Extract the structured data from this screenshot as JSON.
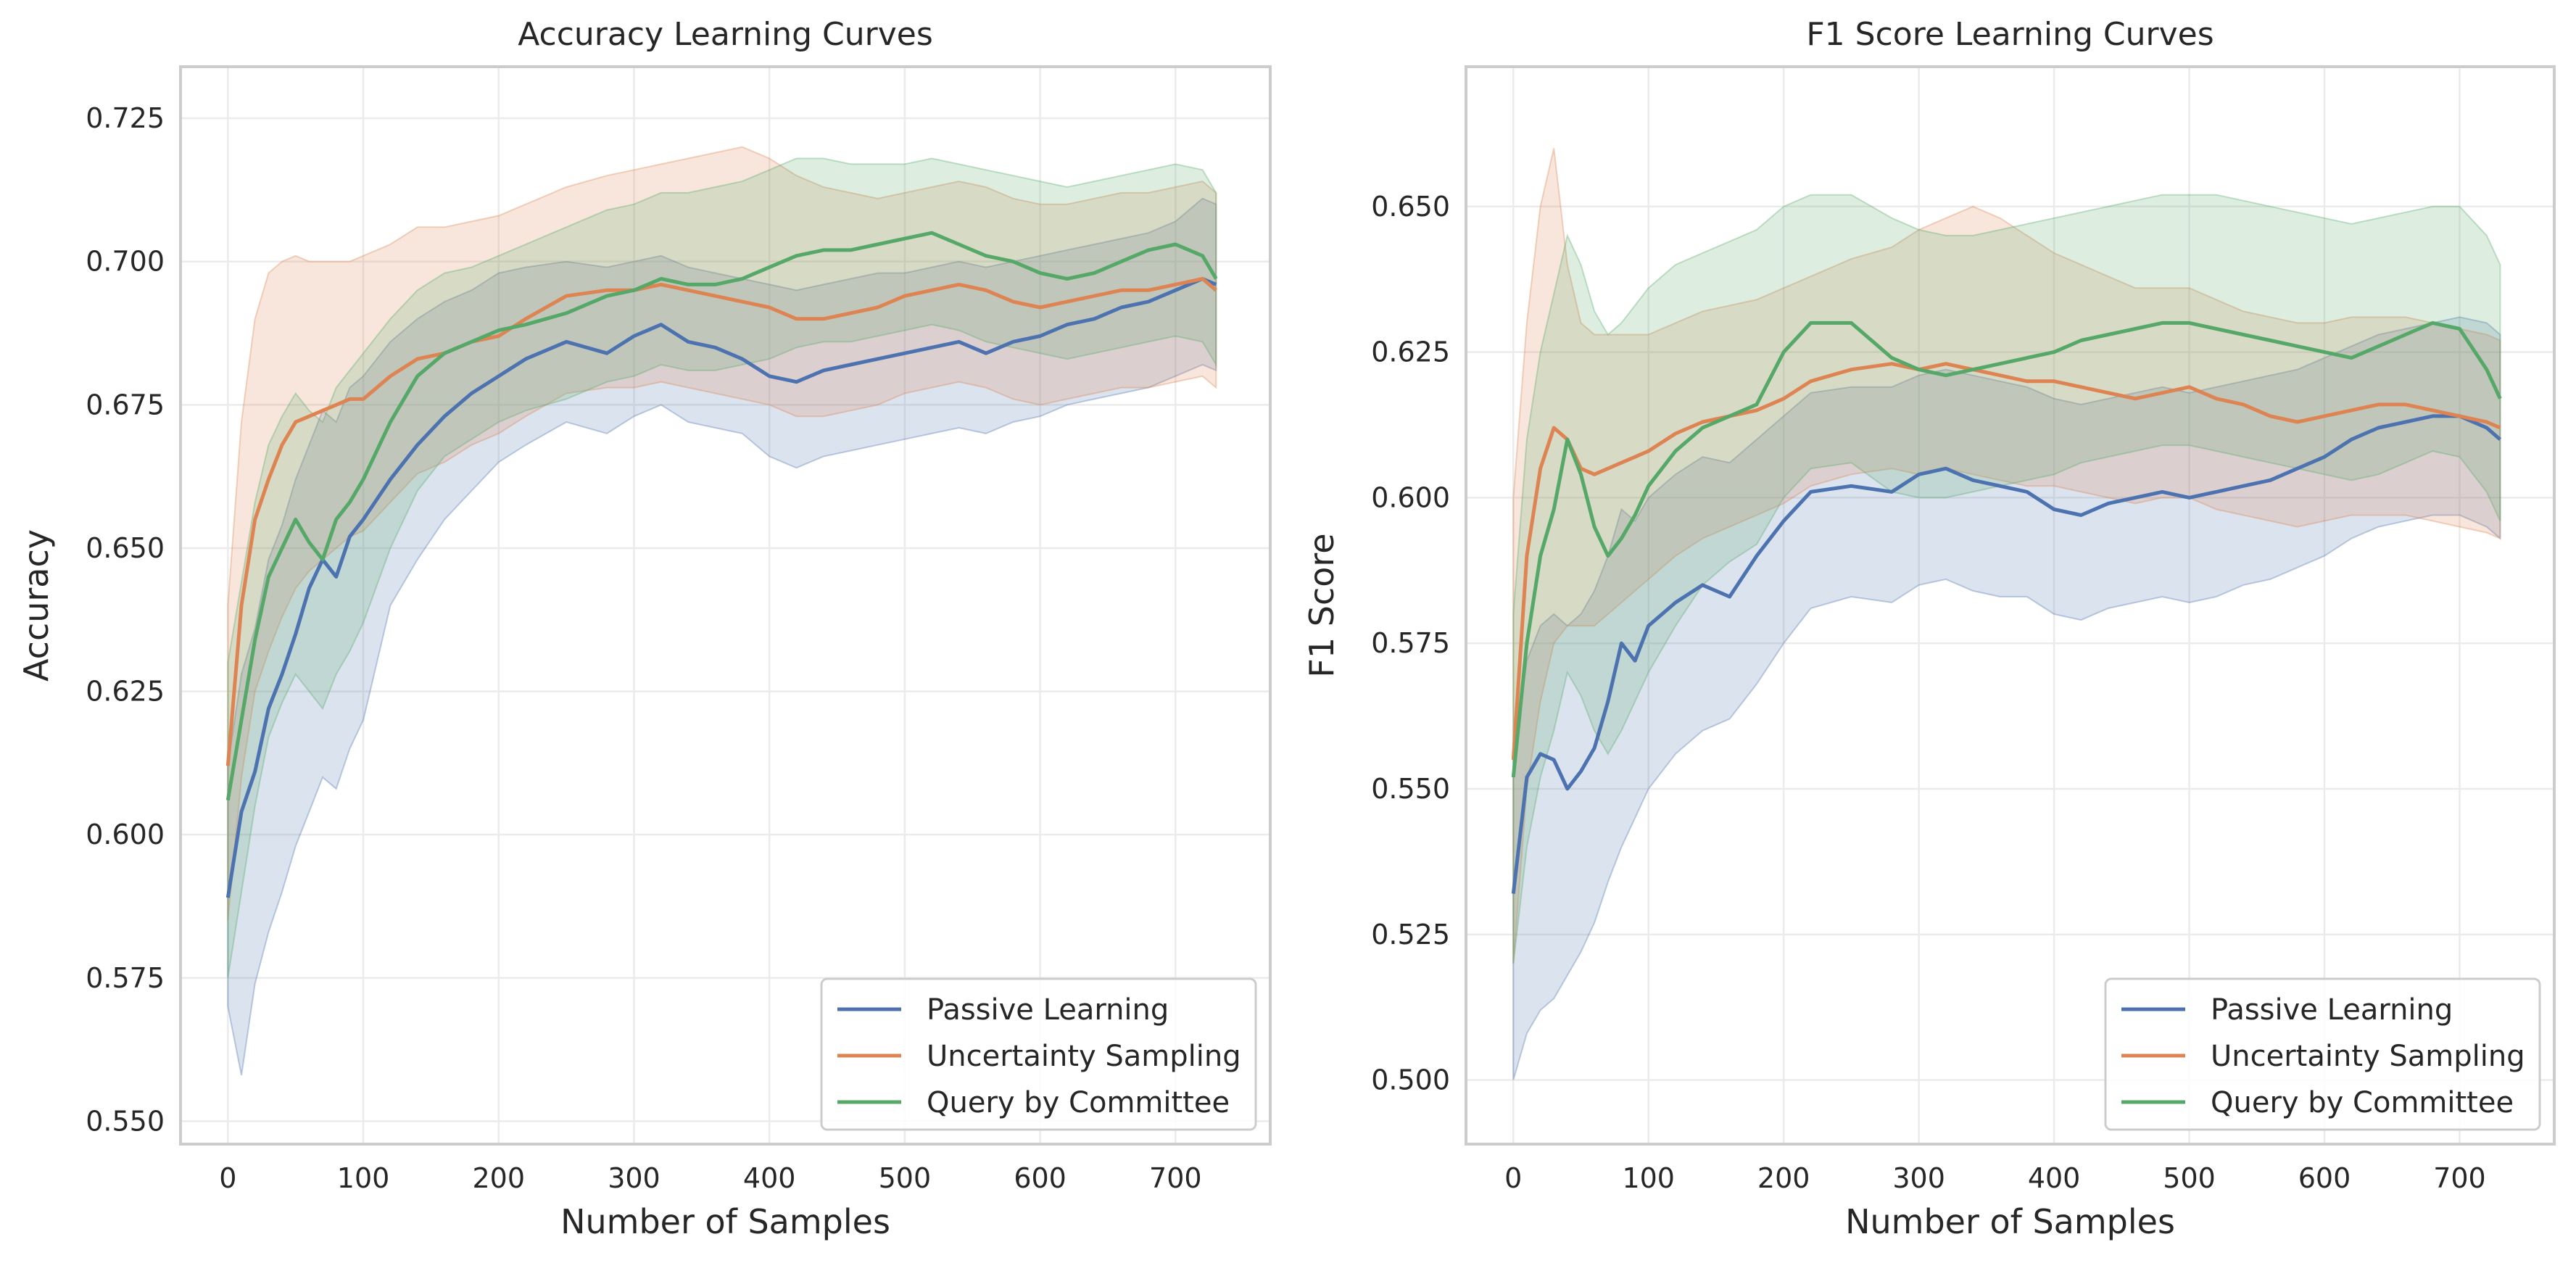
{
  "chart_data": [
    {
      "type": "line",
      "title": "Accuracy Learning Curves",
      "xlabel": "Number of Samples",
      "ylabel": "Accuracy",
      "xlim": [
        -35,
        770
      ],
      "ylim": [
        0.546,
        0.734
      ],
      "xticks": [
        0,
        100,
        200,
        300,
        400,
        500,
        600,
        700
      ],
      "xtick_labels": [
        "0",
        "100",
        "200",
        "300",
        "400",
        "500",
        "600",
        "700"
      ],
      "yticks": [
        0.55,
        0.575,
        0.6,
        0.625,
        0.65,
        0.675,
        0.7,
        0.725
      ],
      "ytick_labels": [
        "0.550",
        "0.575",
        "0.600",
        "0.625",
        "0.650",
        "0.675",
        "0.700",
        "0.725"
      ],
      "grid": true,
      "legend": "lower-right",
      "x": [
        0,
        10,
        20,
        30,
        40,
        50,
        60,
        70,
        80,
        90,
        100,
        120,
        140,
        160,
        180,
        200,
        220,
        250,
        280,
        300,
        320,
        340,
        360,
        380,
        400,
        420,
        440,
        460,
        480,
        500,
        520,
        540,
        560,
        580,
        600,
        620,
        640,
        660,
        680,
        700,
        720,
        730
      ],
      "series": [
        {
          "name": "Passive Learning",
          "color": "#4c72b0",
          "values": [
            0.589,
            0.604,
            0.611,
            0.622,
            0.628,
            0.635,
            0.643,
            0.648,
            0.645,
            0.652,
            0.655,
            0.662,
            0.668,
            0.673,
            0.677,
            0.68,
            0.683,
            0.686,
            0.684,
            0.687,
            0.689,
            0.686,
            0.685,
            0.683,
            0.68,
            0.679,
            0.681,
            0.682,
            0.683,
            0.684,
            0.685,
            0.686,
            0.684,
            0.686,
            0.687,
            0.689,
            0.69,
            0.692,
            0.693,
            0.695,
            0.697,
            0.696
          ],
          "upper": [
            0.612,
            0.628,
            0.636,
            0.648,
            0.654,
            0.662,
            0.668,
            0.674,
            0.672,
            0.678,
            0.68,
            0.686,
            0.69,
            0.693,
            0.695,
            0.698,
            0.699,
            0.7,
            0.699,
            0.7,
            0.701,
            0.699,
            0.698,
            0.697,
            0.696,
            0.695,
            0.696,
            0.697,
            0.698,
            0.698,
            0.699,
            0.7,
            0.699,
            0.7,
            0.701,
            0.702,
            0.703,
            0.704,
            0.705,
            0.707,
            0.711,
            0.71
          ],
          "lower": [
            0.57,
            0.558,
            0.574,
            0.583,
            0.59,
            0.598,
            0.604,
            0.61,
            0.608,
            0.615,
            0.62,
            0.64,
            0.648,
            0.655,
            0.66,
            0.665,
            0.668,
            0.672,
            0.67,
            0.673,
            0.675,
            0.672,
            0.671,
            0.67,
            0.666,
            0.664,
            0.666,
            0.667,
            0.668,
            0.669,
            0.67,
            0.671,
            0.67,
            0.672,
            0.673,
            0.675,
            0.676,
            0.677,
            0.678,
            0.68,
            0.682,
            0.681
          ]
        },
        {
          "name": "Uncertainty Sampling",
          "color": "#dd8452",
          "values": [
            0.612,
            0.64,
            0.655,
            0.662,
            0.668,
            0.672,
            0.673,
            0.674,
            0.675,
            0.676,
            0.676,
            0.68,
            0.683,
            0.684,
            0.686,
            0.687,
            0.69,
            0.694,
            0.695,
            0.695,
            0.696,
            0.695,
            0.694,
            0.693,
            0.692,
            0.69,
            0.69,
            0.691,
            0.692,
            0.694,
            0.695,
            0.696,
            0.695,
            0.693,
            0.692,
            0.693,
            0.694,
            0.695,
            0.695,
            0.696,
            0.697,
            0.695
          ],
          "upper": [
            0.64,
            0.672,
            0.69,
            0.698,
            0.7,
            0.701,
            0.7,
            0.7,
            0.7,
            0.7,
            0.701,
            0.703,
            0.706,
            0.706,
            0.707,
            0.708,
            0.71,
            0.713,
            0.715,
            0.716,
            0.717,
            0.718,
            0.719,
            0.72,
            0.718,
            0.715,
            0.713,
            0.712,
            0.711,
            0.712,
            0.713,
            0.714,
            0.713,
            0.711,
            0.71,
            0.71,
            0.711,
            0.712,
            0.712,
            0.713,
            0.714,
            0.712
          ],
          "lower": [
            0.585,
            0.61,
            0.625,
            0.632,
            0.638,
            0.643,
            0.646,
            0.648,
            0.65,
            0.652,
            0.653,
            0.658,
            0.663,
            0.665,
            0.668,
            0.67,
            0.673,
            0.677,
            0.678,
            0.678,
            0.679,
            0.678,
            0.677,
            0.676,
            0.675,
            0.673,
            0.673,
            0.674,
            0.675,
            0.677,
            0.678,
            0.679,
            0.678,
            0.676,
            0.675,
            0.676,
            0.677,
            0.678,
            0.678,
            0.679,
            0.68,
            0.678
          ]
        },
        {
          "name": "Query by Committee",
          "color": "#55a868",
          "values": [
            0.606,
            0.62,
            0.634,
            0.645,
            0.65,
            0.655,
            0.651,
            0.648,
            0.655,
            0.658,
            0.662,
            0.672,
            0.68,
            0.684,
            0.686,
            0.688,
            0.689,
            0.691,
            0.694,
            0.695,
            0.697,
            0.696,
            0.696,
            0.697,
            0.699,
            0.701,
            0.702,
            0.702,
            0.703,
            0.704,
            0.705,
            0.703,
            0.701,
            0.7,
            0.698,
            0.697,
            0.698,
            0.7,
            0.702,
            0.703,
            0.701,
            0.697
          ],
          "upper": [
            0.63,
            0.644,
            0.658,
            0.668,
            0.673,
            0.677,
            0.674,
            0.672,
            0.678,
            0.681,
            0.684,
            0.69,
            0.695,
            0.698,
            0.699,
            0.701,
            0.703,
            0.706,
            0.709,
            0.71,
            0.712,
            0.712,
            0.713,
            0.714,
            0.716,
            0.718,
            0.718,
            0.717,
            0.717,
            0.717,
            0.718,
            0.717,
            0.716,
            0.715,
            0.714,
            0.713,
            0.714,
            0.715,
            0.716,
            0.717,
            0.716,
            0.712
          ],
          "lower": [
            0.575,
            0.59,
            0.605,
            0.617,
            0.623,
            0.628,
            0.625,
            0.622,
            0.628,
            0.632,
            0.637,
            0.65,
            0.66,
            0.666,
            0.669,
            0.672,
            0.674,
            0.676,
            0.679,
            0.68,
            0.682,
            0.681,
            0.681,
            0.682,
            0.683,
            0.685,
            0.686,
            0.686,
            0.687,
            0.688,
            0.689,
            0.688,
            0.686,
            0.685,
            0.684,
            0.683,
            0.684,
            0.685,
            0.686,
            0.687,
            0.686,
            0.682
          ]
        }
      ]
    },
    {
      "type": "line",
      "title": "F1 Score Learning Curves",
      "xlabel": "Number of Samples",
      "ylabel": "F1 Score",
      "xlim": [
        -35,
        770
      ],
      "ylim": [
        0.489,
        0.674
      ],
      "xticks": [
        0,
        100,
        200,
        300,
        400,
        500,
        600,
        700
      ],
      "xtick_labels": [
        "0",
        "100",
        "200",
        "300",
        "400",
        "500",
        "600",
        "700"
      ],
      "yticks": [
        0.5,
        0.525,
        0.55,
        0.575,
        0.6,
        0.625,
        0.65
      ],
      "ytick_labels": [
        "0.500",
        "0.525",
        "0.550",
        "0.575",
        "0.600",
        "0.625",
        "0.650"
      ],
      "grid": true,
      "legend": "lower-right",
      "x": [
        0,
        10,
        20,
        30,
        40,
        50,
        60,
        70,
        80,
        90,
        100,
        120,
        140,
        160,
        180,
        200,
        220,
        250,
        280,
        300,
        320,
        340,
        360,
        380,
        400,
        420,
        440,
        460,
        480,
        500,
        520,
        540,
        560,
        580,
        600,
        620,
        640,
        660,
        680,
        700,
        720,
        730
      ],
      "series": [
        {
          "name": "Passive Learning",
          "color": "#4c72b0",
          "values": [
            0.532,
            0.552,
            0.556,
            0.555,
            0.55,
            0.553,
            0.557,
            0.565,
            0.575,
            0.572,
            0.578,
            0.582,
            0.585,
            0.583,
            0.59,
            0.596,
            0.601,
            0.602,
            0.601,
            0.604,
            0.605,
            0.603,
            0.602,
            0.601,
            0.598,
            0.597,
            0.599,
            0.6,
            0.601,
            0.6,
            0.601,
            0.602,
            0.603,
            0.605,
            0.607,
            0.61,
            0.612,
            0.613,
            0.614,
            0.614,
            0.612,
            0.61
          ],
          "upper": [
            0.555,
            0.572,
            0.578,
            0.58,
            0.578,
            0.58,
            0.584,
            0.59,
            0.598,
            0.596,
            0.6,
            0.604,
            0.607,
            0.606,
            0.61,
            0.614,
            0.618,
            0.619,
            0.619,
            0.621,
            0.622,
            0.621,
            0.62,
            0.619,
            0.617,
            0.616,
            0.617,
            0.618,
            0.619,
            0.618,
            0.619,
            0.62,
            0.621,
            0.622,
            0.624,
            0.626,
            0.628,
            0.629,
            0.63,
            0.631,
            0.63,
            0.628
          ],
          "lower": [
            0.5,
            0.508,
            0.512,
            0.514,
            0.518,
            0.522,
            0.527,
            0.534,
            0.54,
            0.545,
            0.55,
            0.556,
            0.56,
            0.562,
            0.568,
            0.575,
            0.581,
            0.583,
            0.582,
            0.585,
            0.586,
            0.584,
            0.583,
            0.583,
            0.58,
            0.579,
            0.581,
            0.582,
            0.583,
            0.582,
            0.583,
            0.585,
            0.586,
            0.588,
            0.59,
            0.593,
            0.595,
            0.596,
            0.597,
            0.597,
            0.595,
            0.593
          ]
        },
        {
          "name": "Uncertainty Sampling",
          "color": "#dd8452",
          "values": [
            0.555,
            0.59,
            0.605,
            0.612,
            0.61,
            0.605,
            0.604,
            0.605,
            0.606,
            0.607,
            0.608,
            0.611,
            0.613,
            0.614,
            0.615,
            0.617,
            0.62,
            0.622,
            0.623,
            0.622,
            0.623,
            0.622,
            0.621,
            0.62,
            0.62,
            0.619,
            0.618,
            0.617,
            0.618,
            0.619,
            0.617,
            0.616,
            0.614,
            0.613,
            0.614,
            0.615,
            0.616,
            0.616,
            0.615,
            0.614,
            0.613,
            0.612
          ],
          "upper": [
            0.6,
            0.63,
            0.65,
            0.66,
            0.64,
            0.63,
            0.628,
            0.628,
            0.628,
            0.628,
            0.628,
            0.63,
            0.632,
            0.633,
            0.634,
            0.636,
            0.638,
            0.641,
            0.643,
            0.646,
            0.648,
            0.65,
            0.648,
            0.645,
            0.642,
            0.64,
            0.638,
            0.636,
            0.636,
            0.636,
            0.634,
            0.632,
            0.631,
            0.63,
            0.63,
            0.631,
            0.631,
            0.631,
            0.63,
            0.629,
            0.628,
            0.627
          ],
          "lower": [
            0.52,
            0.55,
            0.565,
            0.575,
            0.578,
            0.578,
            0.578,
            0.58,
            0.582,
            0.584,
            0.586,
            0.59,
            0.593,
            0.595,
            0.597,
            0.599,
            0.602,
            0.604,
            0.605,
            0.604,
            0.605,
            0.604,
            0.603,
            0.602,
            0.602,
            0.601,
            0.6,
            0.599,
            0.6,
            0.6,
            0.598,
            0.597,
            0.596,
            0.595,
            0.596,
            0.597,
            0.597,
            0.597,
            0.596,
            0.595,
            0.594,
            0.593
          ]
        },
        {
          "name": "Query by Committee",
          "color": "#55a868",
          "values": [
            0.552,
            0.575,
            0.59,
            0.598,
            0.61,
            0.604,
            0.595,
            0.59,
            0.593,
            0.597,
            0.602,
            0.608,
            0.612,
            0.614,
            0.616,
            0.625,
            0.63,
            0.63,
            0.624,
            0.622,
            0.621,
            0.622,
            0.623,
            0.624,
            0.625,
            0.627,
            0.628,
            0.629,
            0.63,
            0.63,
            0.629,
            0.628,
            0.627,
            0.626,
            0.625,
            0.624,
            0.626,
            0.628,
            0.63,
            0.629,
            0.622,
            0.617
          ],
          "upper": [
            0.58,
            0.61,
            0.625,
            0.635,
            0.645,
            0.64,
            0.632,
            0.628,
            0.63,
            0.633,
            0.636,
            0.64,
            0.642,
            0.644,
            0.646,
            0.65,
            0.652,
            0.652,
            0.648,
            0.646,
            0.645,
            0.645,
            0.646,
            0.647,
            0.648,
            0.649,
            0.65,
            0.651,
            0.652,
            0.652,
            0.652,
            0.651,
            0.65,
            0.649,
            0.648,
            0.647,
            0.648,
            0.649,
            0.65,
            0.65,
            0.645,
            0.64
          ],
          "lower": [
            0.52,
            0.54,
            0.552,
            0.56,
            0.57,
            0.566,
            0.56,
            0.556,
            0.56,
            0.565,
            0.57,
            0.578,
            0.585,
            0.589,
            0.592,
            0.6,
            0.605,
            0.606,
            0.601,
            0.6,
            0.6,
            0.601,
            0.602,
            0.603,
            0.604,
            0.606,
            0.607,
            0.608,
            0.609,
            0.609,
            0.608,
            0.607,
            0.606,
            0.605,
            0.604,
            0.603,
            0.604,
            0.606,
            0.608,
            0.607,
            0.601,
            0.596
          ]
        }
      ]
    }
  ]
}
